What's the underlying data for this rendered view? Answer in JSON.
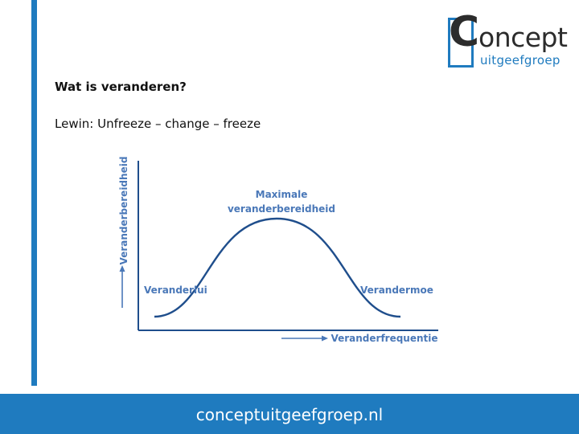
{
  "slide": {
    "title": "Wat is veranderen?",
    "subtitle": "Lewin: Unfreeze – change – freeze"
  },
  "logo": {
    "letter": "C",
    "word": "oncept",
    "sub": "uitgeefgroep"
  },
  "diagram": {
    "y_axis_label": "Veranderbereidheid",
    "x_axis_label": "Veranderfrequentie",
    "peak_label_line1": "Maximale",
    "peak_label_line2": "veranderbereidheid",
    "left_label": "Veranderlui",
    "right_label": "Verandermoe"
  },
  "footer": {
    "url": "conceptuitgeefgroep.nl"
  },
  "colors": {
    "accent": "#1f7bbf",
    "curve": "#1f4e8c",
    "label": "#4a78b8"
  }
}
